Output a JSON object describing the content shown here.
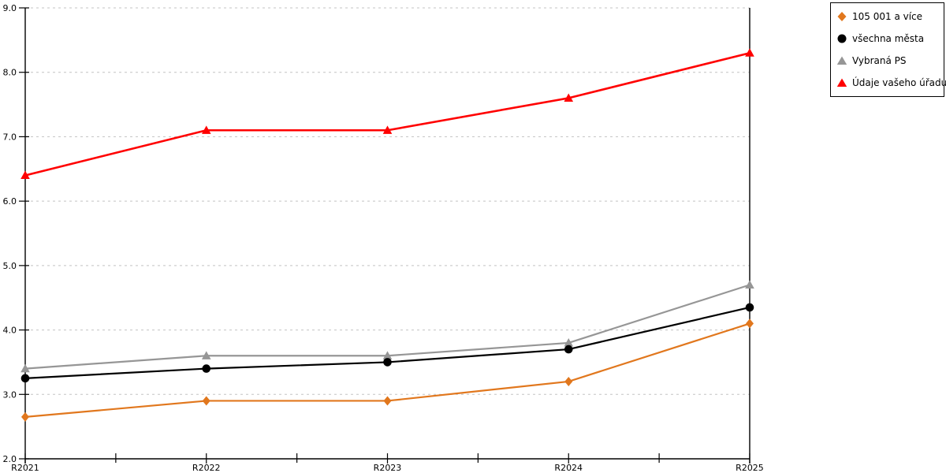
{
  "chart_data": {
    "type": "line",
    "categories": [
      "R2021",
      "R2022",
      "R2023",
      "R2024",
      "R2025"
    ],
    "series": [
      {
        "name": "105 001 a více",
        "color": "#E1771D",
        "marker": "diamond",
        "z": 1,
        "values": [
          2.65,
          2.9,
          2.9,
          3.2,
          4.1
        ]
      },
      {
        "name": "všechna města",
        "color": "#000000",
        "marker": "circle",
        "z": 3,
        "values": [
          3.25,
          3.4,
          3.5,
          3.7,
          4.35
        ]
      },
      {
        "name": "Vybraná PS",
        "color": "#969696",
        "marker": "triangle",
        "z": 2,
        "values": [
          3.4,
          3.6,
          3.6,
          3.8,
          4.7
        ]
      },
      {
        "name": "Údaje vašeho úřadu",
        "color": "#FF0000",
        "marker": "triangle",
        "z": 4,
        "values": [
          6.4,
          7.1,
          7.1,
          7.6,
          8.3
        ]
      }
    ],
    "title": "",
    "xlabel": "",
    "ylabel": "",
    "ylim": [
      2.0,
      9.0
    ],
    "ytick_step": 1.0,
    "ytick_labels": [
      "2.0",
      "3.0",
      "4.0",
      "5.0",
      "6.0",
      "7.0",
      "8.0",
      "9.0"
    ],
    "grid": "horizontal-dotted",
    "legend_position": "top-right"
  },
  "colors": {
    "background": "#ffffff",
    "gridline": "#c3c3c3",
    "axis": "#000000",
    "text": "#000000",
    "legend_border": "#000000"
  }
}
